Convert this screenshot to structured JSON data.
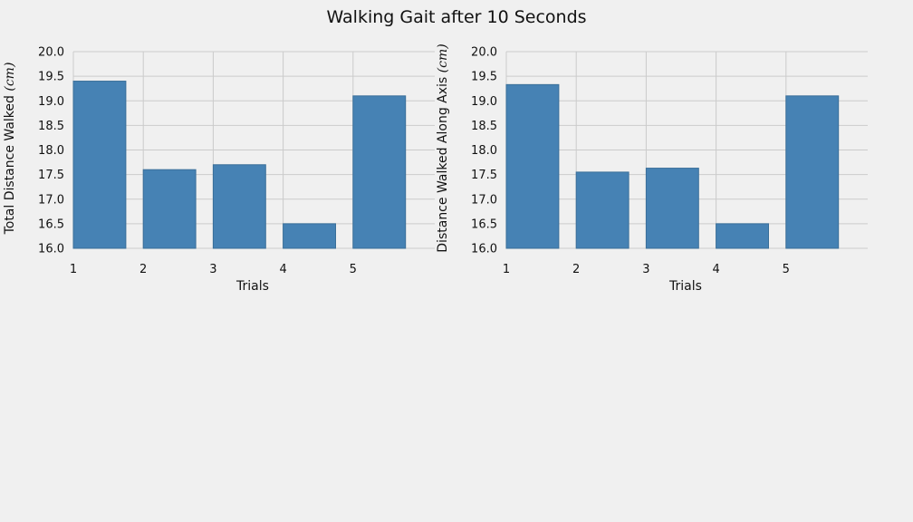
{
  "figure": {
    "title": "Walking Gait after 10 Seconds"
  },
  "style": {
    "background": "#f0f0f0",
    "grid": "#cbcbcb",
    "bar": "#4682b4",
    "bar_edge": "#3a6f99"
  },
  "chart_data": [
    {
      "type": "bar",
      "categories": [
        "1",
        "2",
        "3",
        "4",
        "5"
      ],
      "values": [
        19.4,
        17.6,
        17.7,
        16.5,
        19.1
      ],
      "xlabel": "Trials",
      "ylabel": "Total Distance Walked",
      "ylabel_unit": "(cm)",
      "ylim": [
        16.0,
        20.0
      ],
      "yticks": [
        "16.0",
        "16.5",
        "17.0",
        "17.5",
        "18.0",
        "18.5",
        "19.0",
        "19.5",
        "20.0"
      ],
      "grid": true,
      "legend": "none"
    },
    {
      "type": "bar",
      "categories": [
        "1",
        "2",
        "3",
        "4",
        "5"
      ],
      "values": [
        19.33,
        17.55,
        17.63,
        16.5,
        19.1
      ],
      "xlabel": "Trials",
      "ylabel": "Distance Walked Along Axis",
      "ylabel_unit": "(cm)",
      "ylim": [
        16.0,
        20.0
      ],
      "yticks": [
        "16.0",
        "16.5",
        "17.0",
        "17.5",
        "18.0",
        "18.5",
        "19.0",
        "19.5",
        "20.0"
      ],
      "grid": true,
      "legend": "none"
    }
  ]
}
